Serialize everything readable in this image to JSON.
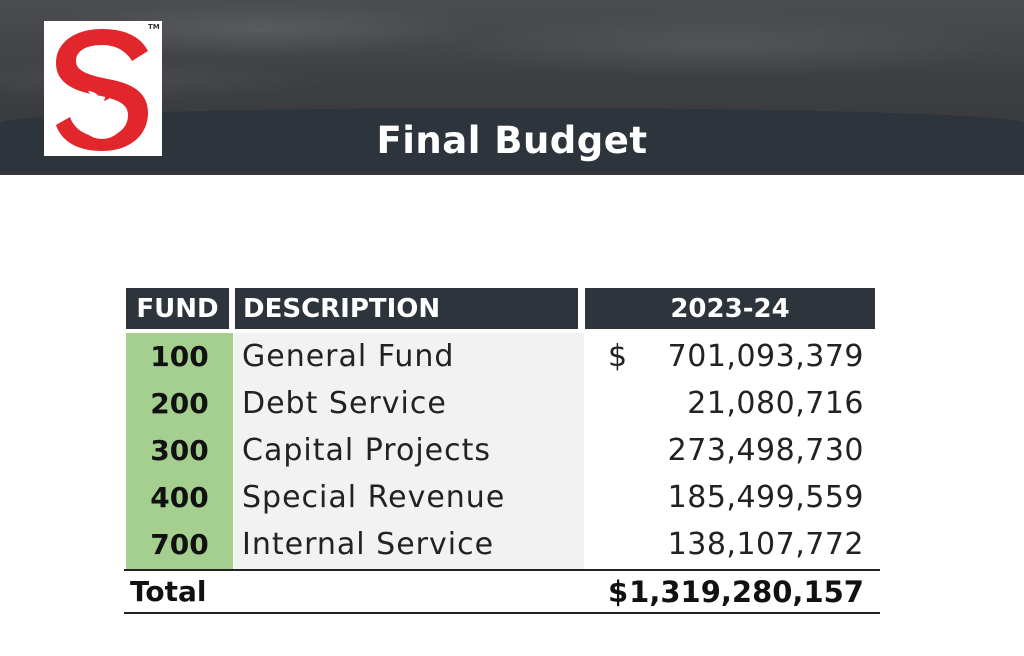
{
  "slide": {
    "title": "Final Budget",
    "logo_mark": "S",
    "logo_tm": "TM"
  },
  "table": {
    "headers": {
      "fund": "FUND",
      "description": "DESCRIPTION",
      "year": "2023-24"
    },
    "rows": [
      {
        "fund": "100",
        "description": "General Fund",
        "currency": "$",
        "amount": "701,093,379"
      },
      {
        "fund": "200",
        "description": "Debt Service",
        "currency": "",
        "amount": "21,080,716"
      },
      {
        "fund": "300",
        "description": "Capital Projects",
        "currency": "",
        "amount": "273,498,730"
      },
      {
        "fund": "400",
        "description": "Special Revenue",
        "currency": "",
        "amount": "185,499,559"
      },
      {
        "fund": "700",
        "description": "Internal Service",
        "currency": "",
        "amount": "138,107,772"
      }
    ],
    "total": {
      "label": "Total",
      "currency": "$",
      "amount": "1,319,280,157"
    }
  },
  "colors": {
    "header_bg": "#2d343c",
    "fund_column": "#a4cf8f",
    "description_column": "#f2f2f2",
    "logo_red": "#e1262c"
  },
  "icons": {
    "logo": "apple-s-logo-icon"
  }
}
